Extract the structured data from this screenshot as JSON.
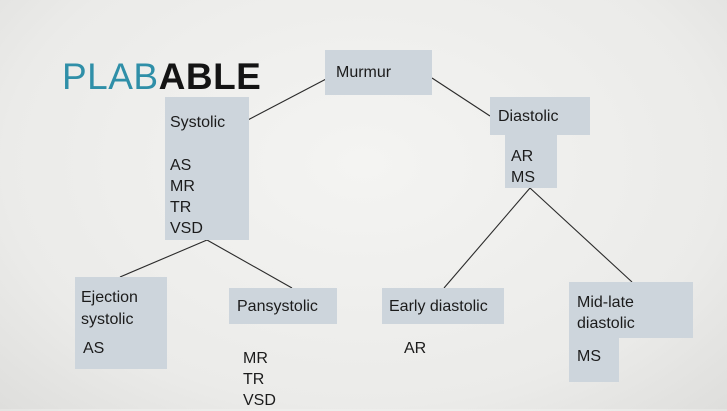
{
  "logo": {
    "part1": "PLAB",
    "part2": "ABLE"
  },
  "nodes": {
    "murmur": "Murmur",
    "systolic": {
      "title": "Systolic",
      "items": [
        "AS",
        "MR",
        "TR",
        "VSD"
      ]
    },
    "diastolic": {
      "title": "Diastolic",
      "items": [
        "AR",
        "MS"
      ]
    },
    "ejection": {
      "title_line1": "Ejection",
      "title_line2": "systolic",
      "items": [
        "AS"
      ]
    },
    "pansystolic": {
      "title": "Pansystolic",
      "items": [
        "MR",
        "TR",
        "VSD"
      ]
    },
    "early_diastolic": {
      "title": "Early diastolic",
      "items": [
        "AR"
      ]
    },
    "mid_late": {
      "title_line1": "Mid-late",
      "title_line2": "diastolic",
      "items": [
        "MS"
      ]
    }
  },
  "colors": {
    "box": "#cdd5dc",
    "brand_teal": "#2f8fa8",
    "line": "#2a2a2a"
  }
}
